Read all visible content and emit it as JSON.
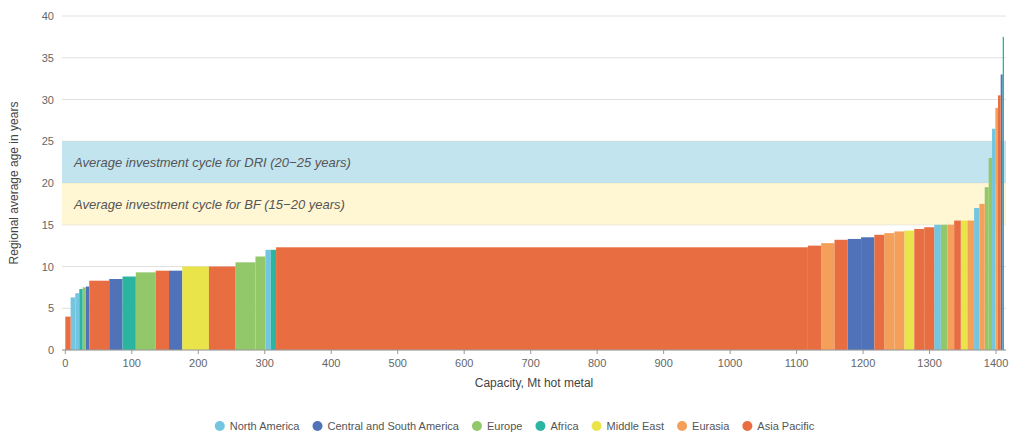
{
  "chart_data": {
    "type": "bar",
    "x_label": "Capacity, Mt hot metal",
    "y_label": "Regional average age in years",
    "xlim": [
      -5,
      1415
    ],
    "xticks": [
      0,
      100,
      200,
      300,
      400,
      500,
      600,
      700,
      800,
      900,
      1000,
      1100,
      1200,
      1300,
      1400
    ],
    "ylim": [
      0,
      40
    ],
    "yticks": [
      0,
      5,
      10,
      15,
      20,
      25,
      30,
      35,
      40
    ],
    "grid": true,
    "legend": "bottom",
    "series": [
      {
        "name": "North America",
        "color": "#74C6E0",
        "x": [
          8,
          15,
          301,
          1307,
          1367,
          1394
        ],
        "widths": [
          7,
          6,
          8,
          10,
          8,
          5
        ],
        "values": [
          6.3,
          6.8,
          12.0,
          15.0,
          17.0,
          26.5
        ]
      },
      {
        "name": "Central and South America",
        "color": "#4F72B8",
        "x": [
          31,
          66,
          156,
          1177,
          1197,
          1407
        ],
        "widths": [
          5,
          20,
          20,
          20,
          20,
          3
        ],
        "values": [
          7.6,
          8.5,
          9.5,
          13.3,
          13.5,
          33.0
        ]
      },
      {
        "name": "Europe",
        "color": "#92C86A",
        "x": [
          26,
          106,
          256,
          286,
          1317,
          1383,
          1389
        ],
        "widths": [
          5,
          30,
          30,
          15,
          10,
          6,
          5
        ],
        "values": [
          7.5,
          9.3,
          10.5,
          11.2,
          15.0,
          19.5,
          23.0
        ]
      },
      {
        "name": "Africa",
        "color": "#2BB5A0",
        "x": [
          21,
          86,
          309,
          1410
        ],
        "widths": [
          5,
          20,
          8,
          2
        ],
        "values": [
          7.3,
          8.8,
          12.0,
          37.5
        ]
      },
      {
        "name": "Middle East",
        "color": "#E8E44A",
        "x": [
          176,
          1262,
          1347
        ],
        "widths": [
          40,
          15,
          10
        ],
        "values": [
          10.0,
          14.3,
          15.5
        ]
      },
      {
        "name": "Eurasia",
        "color": "#F4A05A",
        "x": [
          1137,
          1232,
          1247,
          1327,
          1357,
          1375,
          1399
        ],
        "widths": [
          20,
          15,
          15,
          10,
          10,
          8,
          4
        ],
        "values": [
          12.8,
          14.0,
          14.2,
          15.0,
          15.5,
          17.5,
          29.0
        ]
      },
      {
        "name": "Asia Pacific",
        "color": "#E86E42",
        "x": [
          0,
          36,
          136,
          216,
          317,
          1117,
          1157,
          1217,
          1277,
          1292,
          1337,
          1403
        ],
        "widths": [
          8,
          30,
          20,
          40,
          800,
          20,
          20,
          15,
          15,
          15,
          10,
          4
        ],
        "values": [
          4.0,
          8.3,
          9.5,
          10.0,
          12.3,
          12.5,
          13.2,
          13.8,
          14.5,
          14.7,
          15.5,
          30.5
        ]
      }
    ],
    "bands": [
      {
        "from": 20,
        "to": 25,
        "color": "#A8D8E8",
        "label": "Average investment cycle for DRI (20−25 years)"
      },
      {
        "from": 15,
        "to": 20,
        "color": "#FFF2C0",
        "label": "Average investment cycle for BF (15−20 years)"
      }
    ]
  }
}
